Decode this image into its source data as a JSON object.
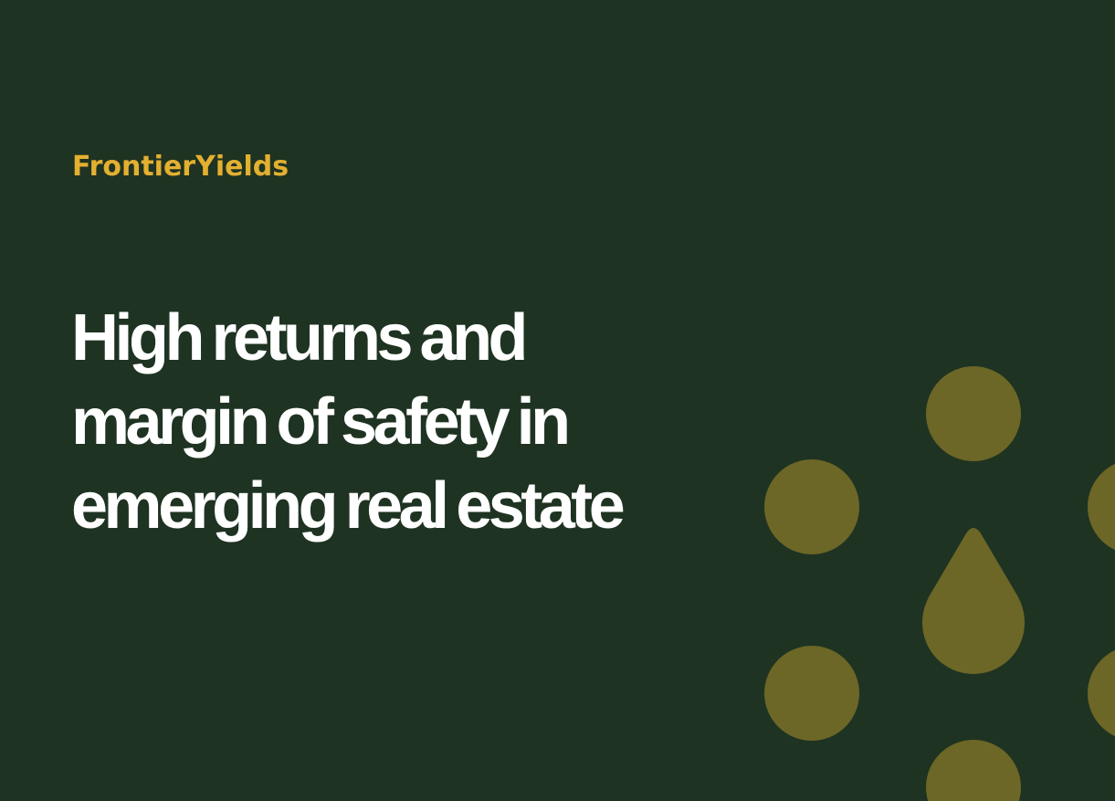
{
  "brand": {
    "name": "FrontierYields"
  },
  "hero": {
    "headline_lines": [
      "High returns and",
      "margin of safety in",
      "emerging real estate"
    ]
  },
  "colors": {
    "background": "#1f3322",
    "brand_text": "#e3b030",
    "headline_text": "#ffffff",
    "decor_shape": "#6c6727"
  },
  "decor": {
    "shape_icons": [
      "circle-icon",
      "drop-icon"
    ]
  }
}
